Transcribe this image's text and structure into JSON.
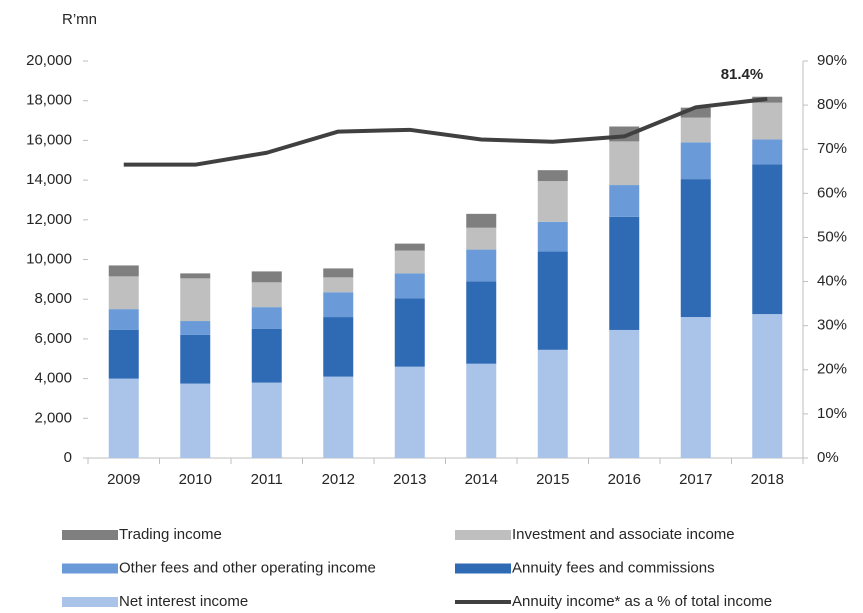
{
  "chart_data": {
    "type": "bar",
    "stacked": true,
    "y_label": "R’mn",
    "categories": [
      "2009",
      "2010",
      "2011",
      "2012",
      "2013",
      "2014",
      "2015",
      "2016",
      "2017",
      "2018"
    ],
    "series": [
      {
        "name": "Net interest income",
        "color": "#a9c4e8",
        "values": [
          4000,
          3750,
          3800,
          4100,
          4600,
          4750,
          5450,
          6450,
          7100,
          7250
        ]
      },
      {
        "name": "Annuity fees and commissions",
        "color": "#2f6ab5",
        "values": [
          2450,
          2450,
          2700,
          3000,
          3450,
          4150,
          4950,
          5700,
          6950,
          7550
        ]
      },
      {
        "name": "Other fees and other operating income",
        "color": "#6a9bd8",
        "values": [
          1050,
          700,
          1100,
          1250,
          1250,
          1600,
          1500,
          1600,
          1850,
          1250
        ]
      },
      {
        "name": "Investment and associate income",
        "color": "#bfbfbf",
        "values": [
          1650,
          2150,
          1250,
          750,
          1150,
          1100,
          2050,
          2200,
          1250,
          1850
        ]
      },
      {
        "name": "Trading income",
        "color": "#7f7f7f",
        "values": [
          550,
          250,
          550,
          450,
          350,
          700,
          550,
          750,
          500,
          300
        ]
      },
      {
        "name": "Annuity income* as a % of total income",
        "color": "#404040",
        "type": "line",
        "axis": "y2",
        "values": [
          66.5,
          66.5,
          69.2,
          74,
          74.4,
          72.2,
          71.7,
          72.9,
          79.5,
          81.4
        ],
        "value_labels": [
          null,
          null,
          null,
          null,
          null,
          null,
          null,
          null,
          null,
          "81.4%"
        ]
      }
    ],
    "ylim": [
      0,
      20000
    ],
    "yticks": [
      0,
      {
        "value": 2000,
        "label": "2,000"
      },
      {
        "value": 4000,
        "label": "4,000"
      },
      {
        "value": 6000,
        "label": "6,000"
      },
      {
        "value": 8000,
        "label": "8,000"
      },
      {
        "value": 10000,
        "label": "10,000"
      },
      {
        "value": 12000,
        "label": "12,000"
      },
      {
        "value": 14000,
        "label": "14,000"
      },
      {
        "value": 16000,
        "label": "16,000"
      },
      {
        "value": 18000,
        "label": "18,000"
      },
      {
        "value": 20000,
        "label": "20,000"
      }
    ],
    "y2lim": [
      0,
      90
    ],
    "y2ticks": [
      {
        "value": 0,
        "label": "0%"
      },
      {
        "value": 10,
        "label": "10%"
      },
      {
        "value": 20,
        "label": "20%"
      },
      {
        "value": 30,
        "label": "30%"
      },
      {
        "value": 40,
        "label": "40%"
      },
      {
        "value": 50,
        "label": "50%"
      },
      {
        "value": 60,
        "label": "60%"
      },
      {
        "value": 70,
        "label": "70%"
      },
      {
        "value": 80,
        "label": "80%"
      },
      {
        "value": 90,
        "label": "90%"
      }
    ],
    "grid": false,
    "legend": "bottom"
  }
}
